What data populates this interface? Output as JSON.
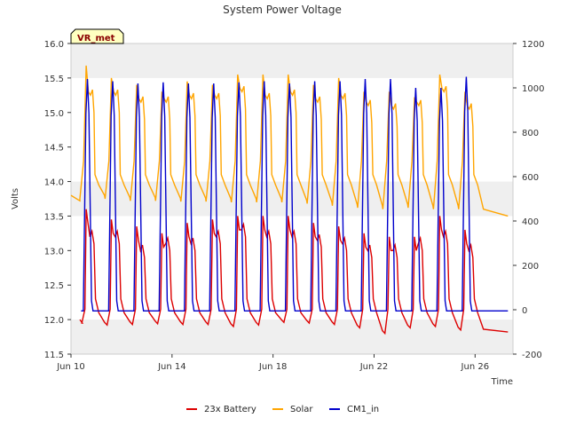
{
  "chart_data": {
    "type": "line",
    "title": "System Power Voltage",
    "xlabel": "Time",
    "ylabel_left": "Volts",
    "ylabel_right": "",
    "site_tag": "VR_met",
    "x_range_days": [
      0,
      17.5
    ],
    "x_start": "Jun 10",
    "x_ticks": [
      {
        "day": 0,
        "label": "Jun 10"
      },
      {
        "day": 4,
        "label": "Jun 14"
      },
      {
        "day": 8,
        "label": "Jun 18"
      },
      {
        "day": 12,
        "label": "Jun 22"
      },
      {
        "day": 16,
        "label": "Jun 26"
      }
    ],
    "y_left": {
      "range": [
        11.5,
        16.0
      ],
      "ticks": [
        "11.5",
        "12.0",
        "12.5",
        "13.0",
        "13.5",
        "14.0",
        "14.5",
        "15.0",
        "15.5",
        "16.0"
      ]
    },
    "y_right": {
      "range": [
        -200,
        1200
      ],
      "ticks": [
        "-200",
        "0",
        "200",
        "400",
        "600",
        "800",
        "1000",
        "1200"
      ]
    },
    "legend_position": "bottom-center",
    "colors": {
      "battery": "#dd0000",
      "solar": "#ffa500",
      "cm1": "#0000cc",
      "band": "#efefef",
      "tag_bg": "#ffffc0"
    },
    "series": [
      {
        "name": "23x Battery",
        "axis": "left",
        "description": "daily cycle: night minimum ~12.0 V, afternoon peak",
        "night_min": [
          11.95,
          11.92,
          11.93,
          11.94,
          11.93,
          11.93,
          11.9,
          11.92,
          11.96,
          11.95,
          11.93,
          11.88,
          11.8,
          11.88,
          11.9,
          11.85,
          11.82,
          11.83
        ],
        "peak": [
          13.6,
          13.45,
          13.35,
          13.25,
          13.4,
          13.45,
          13.5,
          13.5,
          13.5,
          13.4,
          13.35,
          13.25,
          13.2,
          13.2,
          13.5,
          13.3
        ],
        "evening": [
          13.2,
          13.2,
          13.0,
          13.1,
          13.1,
          13.2,
          13.3,
          13.2,
          13.2,
          13.15,
          13.1,
          13.0,
          13.0,
          13.1,
          13.2,
          13.0
        ]
      },
      {
        "name": "Solar",
        "axis": "left",
        "description": "daily peak then float ~15.2 V, night decay to ~13.7 V",
        "night_min": [
          13.75,
          13.75,
          13.72,
          13.72,
          13.71,
          13.71,
          13.7,
          13.7,
          13.7,
          13.68,
          13.65,
          13.62,
          13.6,
          13.62,
          13.6,
          13.6,
          13.55,
          13.5
        ],
        "peak": [
          15.68,
          15.5,
          15.4,
          15.3,
          15.45,
          15.4,
          15.55,
          15.55,
          15.55,
          15.4,
          15.5,
          15.3,
          15.3,
          15.2,
          15.55,
          15.3
        ],
        "float": [
          15.25,
          15.25,
          15.15,
          15.15,
          15.2,
          15.2,
          15.3,
          15.2,
          15.25,
          15.15,
          15.2,
          15.1,
          15.05,
          15.1,
          15.3,
          15.05
        ]
      },
      {
        "name": "CM1_in",
        "axis": "right",
        "description": "night baseline ~0, midday spike to ~1000-1040",
        "baseline": -5,
        "peak": [
          1040,
          1030,
          1020,
          1025,
          1020,
          1020,
          1025,
          1030,
          1020,
          1030,
          1030,
          1040,
          1040,
          1000,
          1000,
          1050
        ]
      }
    ]
  }
}
